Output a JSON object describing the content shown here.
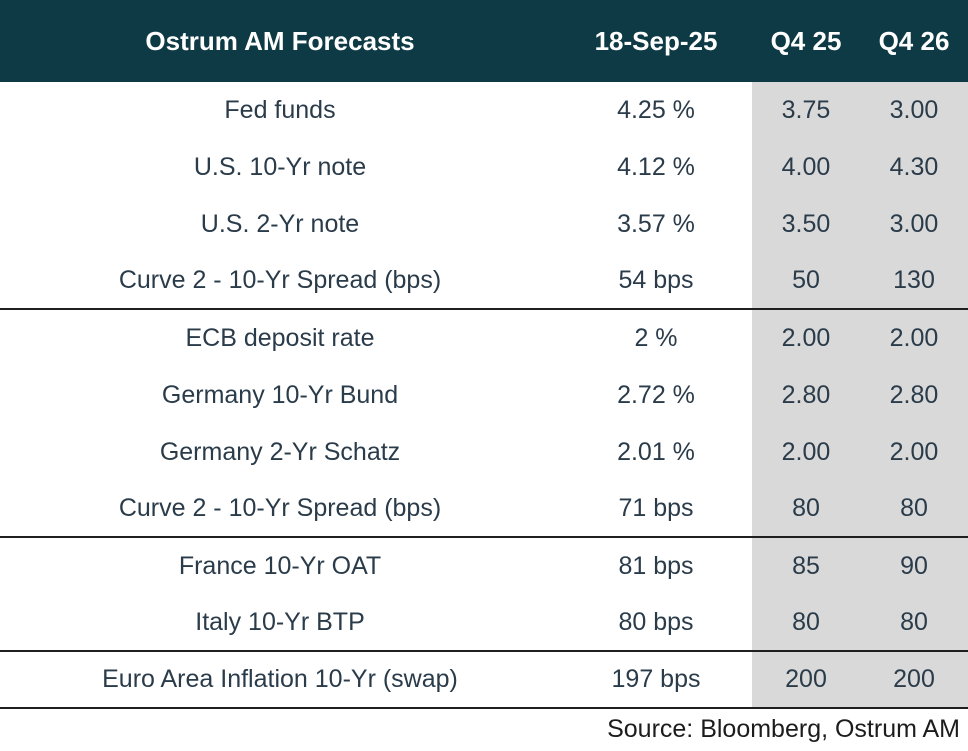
{
  "header": {
    "title": "Ostrum AM Forecasts",
    "date_col": "18-Sep-25",
    "q425_col": "Q4 25",
    "q426_col": "Q4 26"
  },
  "rows": [
    {
      "label": "Fed funds",
      "current": "4.25 %",
      "q425": "3.75",
      "q426": "3.00"
    },
    {
      "label": "U.S.  10-Yr note",
      "current": "4.12 %",
      "q425": "4.00",
      "q426": "4.30"
    },
    {
      "label": "U.S. 2-Yr note",
      "current": "3.57 %",
      "q425": "3.50",
      "q426": "3.00"
    },
    {
      "label": "Curve 2 - 10-Yr Spread (bps)",
      "current": "54 bps",
      "q425": "50",
      "q426": "130"
    },
    {
      "label": "ECB deposit rate",
      "current": "2 %",
      "q425": "2.00",
      "q426": "2.00"
    },
    {
      "label": "Germany  10-Yr Bund",
      "current": "2.72 %",
      "q425": "2.80",
      "q426": "2.80"
    },
    {
      "label": "Germany  2-Yr Schatz",
      "current": "2.01 %",
      "q425": "2.00",
      "q426": "2.00"
    },
    {
      "label": "Curve 2 - 10-Yr Spread (bps)",
      "current": "71 bps",
      "q425": "80",
      "q426": "80"
    },
    {
      "label": "France 10-Yr OAT",
      "current": "81 bps",
      "q425": "85",
      "q426": "90"
    },
    {
      "label": "Italy 10-Yr BTP",
      "current": "80 bps",
      "q425": "80",
      "q426": "80"
    },
    {
      "label": "Euro Area Inflation 10-Yr (swap)",
      "current": "197 bps",
      "q425": "200",
      "q426": "200"
    }
  ],
  "footer": {
    "source": "Source: Bloomberg, Ostrum AM"
  },
  "colors": {
    "header_bg": "#0d3a44",
    "header_text": "#ffffff",
    "forecast_col_bg": "#d9d9d9",
    "body_text": "#2a3b4a",
    "divider": "#1f1f1f"
  }
}
